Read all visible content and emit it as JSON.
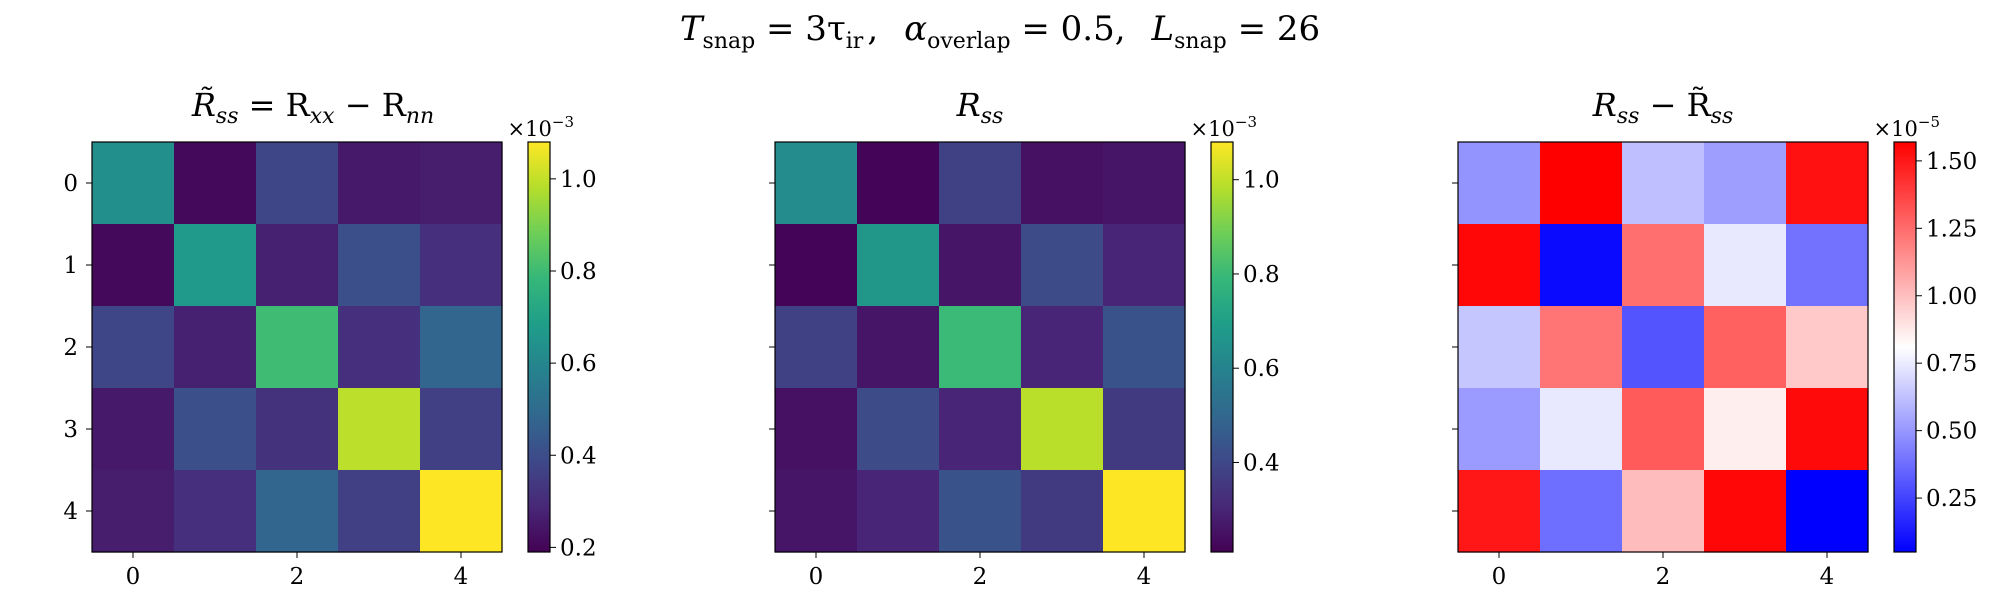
{
  "figure": {
    "suptitle": {
      "t_symbol": "T",
      "t_sub": "snap",
      "t_value": " = 3τ",
      "t_value_sub": "ir",
      "a_symbol": "α",
      "a_sub": "overlap",
      "a_value": " = 0.5,",
      "l_symbol": "L",
      "l_sub": "snap",
      "l_value": " = 26"
    }
  },
  "colors": {
    "viridis": [
      "#440154",
      "#482878",
      "#3e4989",
      "#31688e",
      "#26828e",
      "#1f9e89",
      "#35b779",
      "#6ece58",
      "#b5de2b",
      "#fde725"
    ],
    "bwr": [
      "#0000ff",
      "#ffffff",
      "#ff0000"
    ]
  },
  "chart_data": [
    {
      "type": "heatmap",
      "title_parts": {
        "main": "R̃",
        "sub": "ss",
        "eq": " = R",
        "sub2": "xx",
        "minus": " − R",
        "sub3": "nn"
      },
      "colormap": "viridis",
      "x_ticks": [
        "0",
        "2",
        "4"
      ],
      "y_ticks": [
        "0",
        "1",
        "2",
        "3",
        "4"
      ],
      "colorbar_ticks": [
        "0.2",
        "0.4",
        "0.6",
        "0.8",
        "1.0"
      ],
      "colorbar_tick_values": [
        0.2,
        0.4,
        0.6,
        0.8,
        1.0
      ],
      "colorbar_offset": "×10",
      "colorbar_offset_exp": "−3",
      "vmin": 0.19,
      "vmax": 1.08,
      "values": [
        [
          0.63,
          0.21,
          0.38,
          0.25,
          0.26
        ],
        [
          0.21,
          0.67,
          0.27,
          0.41,
          0.31
        ],
        [
          0.38,
          0.27,
          0.8,
          0.31,
          0.48
        ],
        [
          0.25,
          0.41,
          0.32,
          0.99,
          0.36
        ],
        [
          0.26,
          0.31,
          0.48,
          0.36,
          1.08
        ]
      ]
    },
    {
      "type": "heatmap",
      "title_parts": {
        "main": "R",
        "sub": "ss"
      },
      "colormap": "viridis",
      "x_ticks": [
        "0",
        "2",
        "4"
      ],
      "y_ticks": [
        "0",
        "1",
        "2",
        "3",
        "4"
      ],
      "colorbar_ticks": [
        "0.4",
        "0.6",
        "0.8",
        "1.0"
      ],
      "colorbar_tick_values": [
        0.4,
        0.6,
        0.8,
        1.0
      ],
      "colorbar_offset": "×10",
      "colorbar_offset_exp": "−3",
      "vmin": 0.21,
      "vmax": 1.08,
      "values": [
        [
          0.63,
          0.22,
          0.38,
          0.25,
          0.26
        ],
        [
          0.22,
          0.67,
          0.26,
          0.41,
          0.3
        ],
        [
          0.38,
          0.26,
          0.8,
          0.3,
          0.43
        ],
        [
          0.25,
          0.41,
          0.3,
          0.99,
          0.36
        ],
        [
          0.26,
          0.3,
          0.43,
          0.36,
          1.08
        ]
      ]
    },
    {
      "type": "heatmap",
      "title_parts": {
        "main": "R",
        "sub": "ss",
        "minus": " − R̃",
        "sub2": "ss"
      },
      "colormap": "bwr",
      "x_ticks": [
        "0",
        "2",
        "4"
      ],
      "y_ticks": [
        "0",
        "1",
        "2",
        "3",
        "4"
      ],
      "colorbar_ticks": [
        "0.25",
        "0.50",
        "0.75",
        "1.00",
        "1.25",
        "1.50"
      ],
      "colorbar_tick_values": [
        0.25,
        0.5,
        0.75,
        1.0,
        1.25,
        1.5
      ],
      "colorbar_offset": "×10",
      "colorbar_offset_exp": "−5",
      "vmin": 0.05,
      "vmax": 1.57,
      "values": [
        [
          0.49,
          1.57,
          0.62,
          0.52,
          1.52
        ],
        [
          1.55,
          0.08,
          1.24,
          0.74,
          0.39
        ],
        [
          0.64,
          1.22,
          0.3,
          1.28,
          0.97
        ],
        [
          0.51,
          0.74,
          1.3,
          0.86,
          1.54
        ],
        [
          1.5,
          0.38,
          1.01,
          1.55,
          0.05
        ]
      ]
    }
  ]
}
